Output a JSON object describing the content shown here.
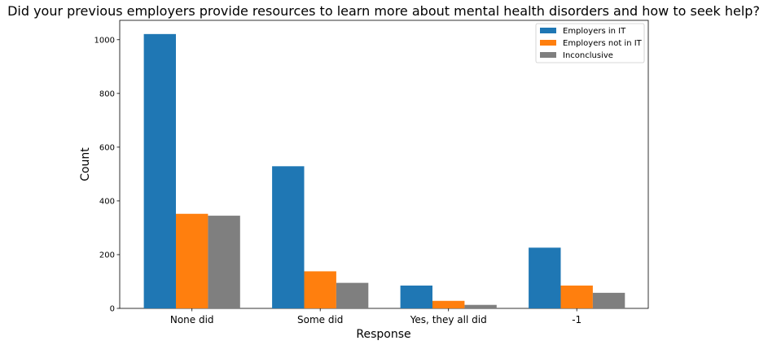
{
  "chart_data": {
    "type": "bar",
    "title": "Did your previous employers provide resources to learn more about mental health disorders and how to seek help?",
    "xlabel": "Response",
    "ylabel": "Count",
    "categories": [
      "None did",
      "Some did",
      "Yes, they all did",
      "-1"
    ],
    "series": [
      {
        "name": "Employers in IT",
        "color": "#1f77b4",
        "values": [
          1021,
          529,
          85,
          226
        ]
      },
      {
        "name": "Employers not in IT",
        "color": "#ff7f0e",
        "values": [
          352,
          138,
          28,
          85
        ]
      },
      {
        "name": "Inconclusive",
        "color": "#7f7f7f",
        "values": [
          345,
          95,
          13,
          58
        ]
      }
    ],
    "ylim": [
      0,
      1072
    ],
    "yticks": [
      0,
      200,
      400,
      600,
      800,
      1000
    ],
    "grid": false,
    "legend_position": "top-right"
  }
}
